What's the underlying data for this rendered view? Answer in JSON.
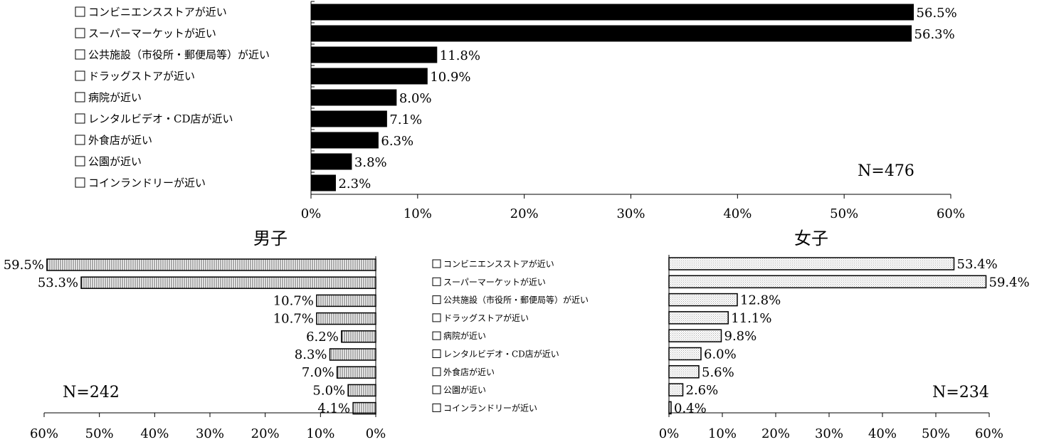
{
  "chart_data": [
    {
      "type": "bar",
      "orientation": "horizontal",
      "categories": [
        "コンビニエンスストアが近い",
        "スーパーマーケットが近い",
        "公共施設（市役所・郵便局等）が近い",
        "ドラッグストアが近い",
        "病院が近い",
        "レンタルビデオ・CD店が近い",
        "外食店が近い",
        "公園が近い",
        "コインランドリーが近い"
      ],
      "values": [
        56.5,
        56.3,
        11.8,
        10.9,
        8.0,
        7.1,
        6.3,
        3.8,
        2.3
      ],
      "value_labels": [
        "56.5%",
        "56.3%",
        "11.8%",
        "10.9%",
        "8.0%",
        "7.1%",
        "6.3%",
        "3.8%",
        "2.3%"
      ],
      "xlim": [
        0,
        60
      ],
      "xticks": [
        "0%",
        "10%",
        "20%",
        "30%",
        "40%",
        "50%",
        "60%"
      ],
      "n_label": "N=476",
      "title": "",
      "bar_color": "#000000"
    },
    {
      "type": "bar",
      "orientation": "horizontal",
      "direction": "reversed",
      "title": "男子",
      "values": [
        59.5,
        53.3,
        10.7,
        10.7,
        6.2,
        8.3,
        7.0,
        5.0,
        4.1
      ],
      "value_labels": [
        "59.5%",
        "53.3%",
        "10.7%",
        "10.7%",
        "6.2%",
        "8.3%",
        "7.0%",
        "5.0%",
        "4.1%"
      ],
      "xlim": [
        0,
        60
      ],
      "xticks": [
        "60%",
        "50%",
        "40%",
        "30%",
        "20%",
        "10%",
        "0%"
      ],
      "n_label": "N=242",
      "fill": "vertical-hatch"
    },
    {
      "type": "bar",
      "orientation": "horizontal",
      "title": "女子",
      "categories": [
        "コンビニエンスストアが近い",
        "スーパーマーケットが近い",
        "公共施設（市役所・郵便局等）が近い",
        "ドラッグストアが近い",
        "病院が近い",
        "レンタルビデオ・CD店が近い",
        "外食店が近い",
        "公園が近い",
        "コインランドリーが近い"
      ],
      "values": [
        53.4,
        59.4,
        12.8,
        11.1,
        9.8,
        6.0,
        5.6,
        2.6,
        0.4
      ],
      "value_labels": [
        "53.4%",
        "59.4%",
        "12.8%",
        "11.1%",
        "9.8%",
        "6.0%",
        "5.6%",
        "2.6%",
        "0.4%"
      ],
      "xlim": [
        0,
        60
      ],
      "xticks": [
        "0%",
        "10%",
        "20%",
        "30%",
        "40%",
        "50%",
        "60%"
      ],
      "n_label": "N=234",
      "fill": "light-dots"
    }
  ]
}
